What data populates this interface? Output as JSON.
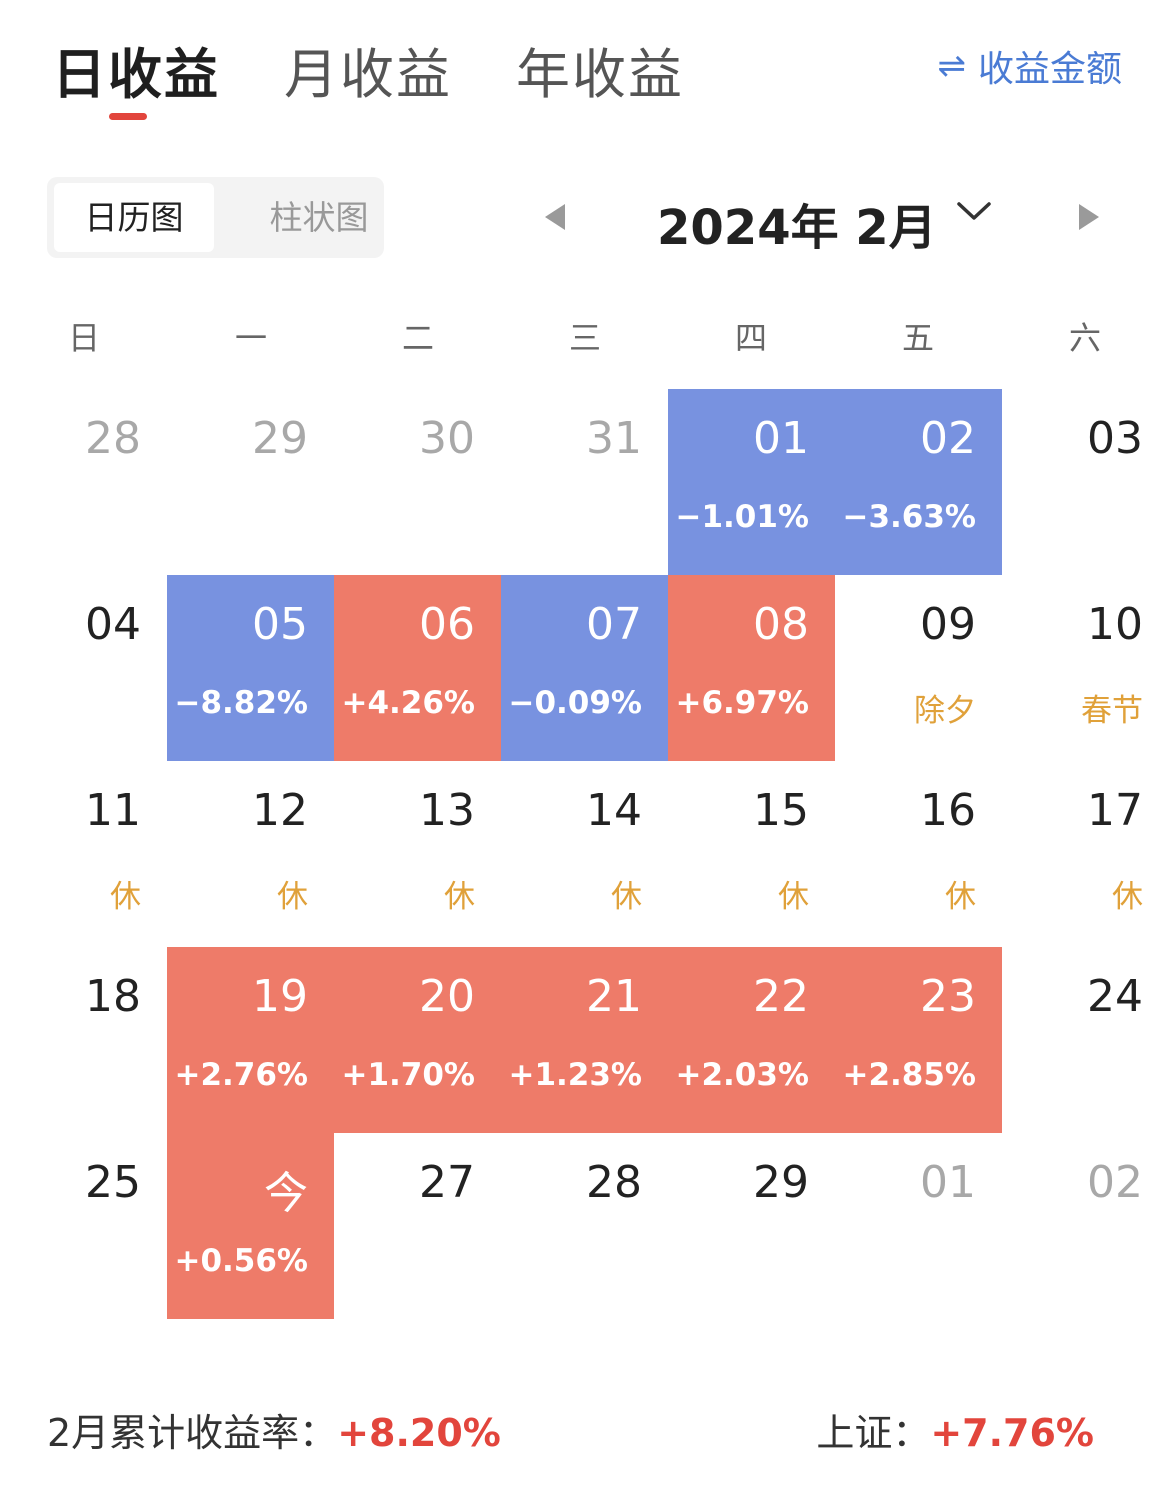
{
  "tabs": [
    {
      "label": "日收益",
      "active": true
    },
    {
      "label": "月收益",
      "active": false
    },
    {
      "label": "年收益",
      "active": false
    }
  ],
  "switch": {
    "icon": "swap-arrows-icon",
    "label": "收益金额"
  },
  "view_toggle": {
    "calendar": "日历图",
    "bar": "柱状图",
    "active": "calendar"
  },
  "month_title": "2024年 2月",
  "weekdays": [
    "日",
    "一",
    "二",
    "三",
    "四",
    "五",
    "六"
  ],
  "colors": {
    "up": "#ee7b69",
    "down": "#7892e0",
    "holiday": "#e0a13a",
    "accent": "#e2453c",
    "link": "#4a7bd4"
  },
  "weeks": [
    [
      {
        "day": "28",
        "muted": true
      },
      {
        "day": "29",
        "muted": true
      },
      {
        "day": "30",
        "muted": true
      },
      {
        "day": "31",
        "muted": true
      },
      {
        "day": "01",
        "sub": "−1.01%",
        "trend": "down"
      },
      {
        "day": "02",
        "sub": "−3.63%",
        "trend": "down"
      },
      {
        "day": "03"
      }
    ],
    [
      {
        "day": "04"
      },
      {
        "day": "05",
        "sub": "−8.82%",
        "trend": "down"
      },
      {
        "day": "06",
        "sub": "+4.26%",
        "trend": "up"
      },
      {
        "day": "07",
        "sub": "−0.09%",
        "trend": "down"
      },
      {
        "day": "08",
        "sub": "+6.97%",
        "trend": "up"
      },
      {
        "day": "09",
        "sub": "除夕"
      },
      {
        "day": "10",
        "sub": "春节"
      }
    ],
    [
      {
        "day": "11",
        "sub": "休"
      },
      {
        "day": "12",
        "sub": "休"
      },
      {
        "day": "13",
        "sub": "休"
      },
      {
        "day": "14",
        "sub": "休"
      },
      {
        "day": "15",
        "sub": "休"
      },
      {
        "day": "16",
        "sub": "休"
      },
      {
        "day": "17",
        "sub": "休"
      }
    ],
    [
      {
        "day": "18"
      },
      {
        "day": "19",
        "sub": "+2.76%",
        "trend": "up"
      },
      {
        "day": "20",
        "sub": "+1.70%",
        "trend": "up"
      },
      {
        "day": "21",
        "sub": "+1.23%",
        "trend": "up"
      },
      {
        "day": "22",
        "sub": "+2.03%",
        "trend": "up"
      },
      {
        "day": "23",
        "sub": "+2.85%",
        "trend": "up"
      },
      {
        "day": "24"
      }
    ],
    [
      {
        "day": "25"
      },
      {
        "day": "今",
        "sub": "+0.56%",
        "trend": "up"
      },
      {
        "day": "27"
      },
      {
        "day": "28"
      },
      {
        "day": "29"
      },
      {
        "day": "01",
        "muted": true
      },
      {
        "day": "02",
        "muted": true
      }
    ]
  ],
  "footer": {
    "cumulative_label": "2月累计收益率：",
    "cumulative_value": "+8.20%",
    "index_label": "上证：",
    "index_value": "+7.76%"
  }
}
